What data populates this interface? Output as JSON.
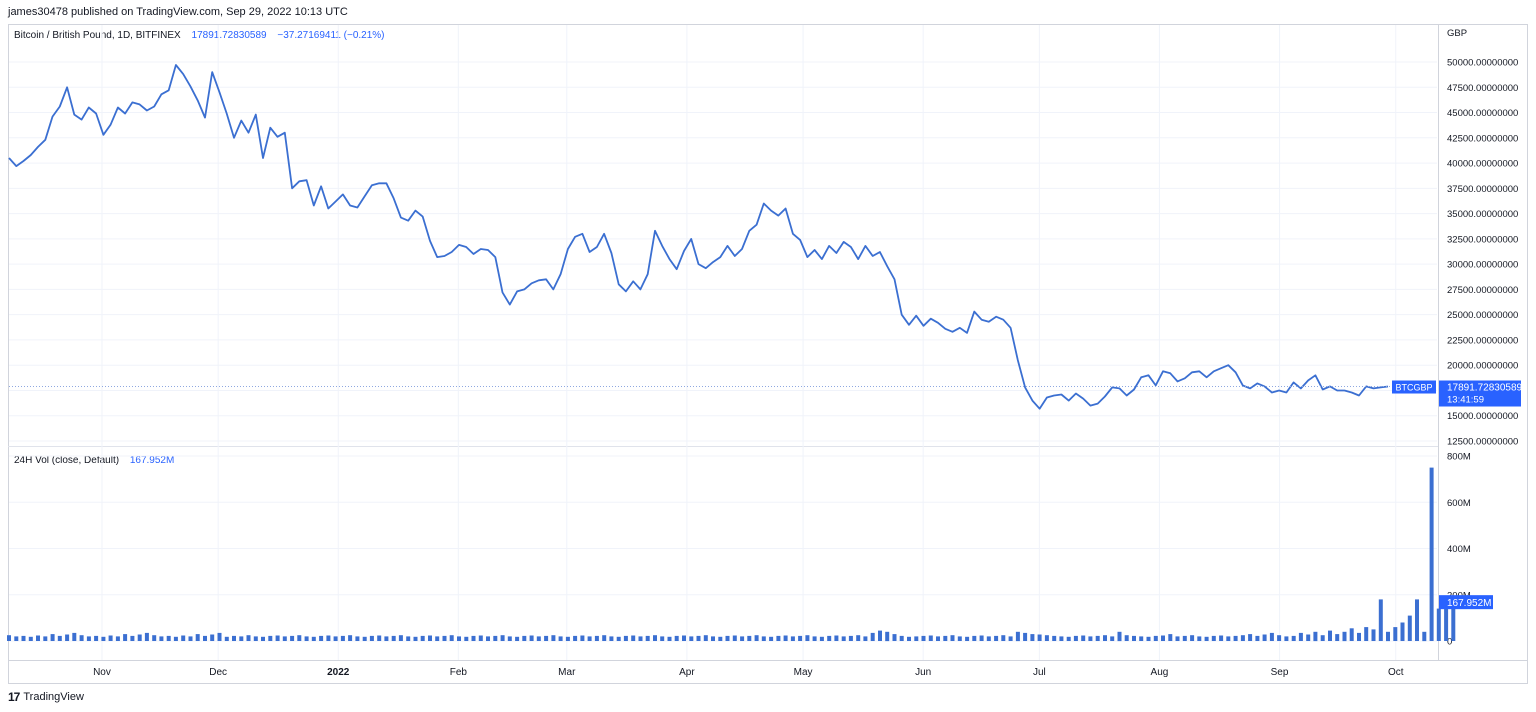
{
  "header": {
    "published": "james30478 published on TradingView.com, Sep 29, 2022 10:13 UTC"
  },
  "price_legend": {
    "symbol": "Bitcoin / British Pound, 1D, BITFINEX",
    "last": "17891.72830589",
    "change": "−37.27169411 (−0.21%)"
  },
  "volume_legend": {
    "name": "24H Vol (close, Default)",
    "value": "167.952M"
  },
  "currency_label": "GBP",
  "price_tag": {
    "symbol": "BTCGBP",
    "price": "17891.72830589",
    "countdown": "13:41:59"
  },
  "volume_tag": "167.952M",
  "footer": {
    "logo": "17",
    "brand": "TradingView"
  },
  "colors": {
    "line": "#3b6fd1",
    "accent": "#2962ff",
    "grid": "#f0f3fa",
    "text": "#131722"
  },
  "chart_data": {
    "type": "line",
    "title": "Bitcoin / British Pound, 1D, BITFINEX",
    "x_labels": [
      "Nov",
      "Dec",
      "2022",
      "Feb",
      "Mar",
      "Apr",
      "May",
      "Jun",
      "Jul",
      "Aug",
      "Sep",
      "Oct"
    ],
    "y_ticks": [
      "50000.00000000",
      "47500.00000000",
      "45000.00000000",
      "42500.00000000",
      "40000.00000000",
      "37500.00000000",
      "35000.00000000",
      "32500.00000000",
      "30000.00000000",
      "27500.00000000",
      "25000.00000000",
      "22500.00000000",
      "20000.00000000",
      "17500.00000000",
      "15000.00000000",
      "12500.00000000"
    ],
    "ylim": [
      12500,
      50000
    ],
    "series": [
      {
        "x_start": "2021-10-08",
        "interval": "1D",
        "values": [
          40500,
          39700,
          40200,
          40800,
          41600,
          42300,
          44600,
          45600,
          47500,
          44800,
          44300,
          45500,
          44900,
          42800,
          43800,
          45500,
          44900,
          46000,
          45800,
          45200,
          45600,
          46800,
          47200,
          49700,
          48800,
          47600,
          46200,
          44500,
          49000,
          47000,
          44900,
          42500,
          44200,
          43000,
          44800,
          40500,
          43500,
          42600,
          43000,
          37500,
          38200,
          38300,
          35800,
          37700,
          35500,
          36200,
          36900,
          35800,
          35600,
          36700,
          37800,
          38000,
          38000,
          36500,
          34600,
          34300,
          35300,
          34700,
          32300,
          30700,
          30800,
          31200,
          31900,
          31700,
          31000,
          31500,
          31400,
          30700,
          27200,
          26000,
          27300,
          27500,
          28100,
          28400,
          28500,
          27500,
          29000,
          31500,
          32700,
          33000,
          31200,
          31700,
          33000,
          31100,
          28000,
          27300,
          28300,
          27500,
          29000,
          33300,
          31800,
          30500,
          29500,
          31300,
          32500,
          30000,
          29600,
          30200,
          30700,
          31800,
          30800,
          31500,
          33300,
          33900,
          36000,
          35300,
          34800,
          35500,
          33000,
          32400,
          30700,
          31400,
          30500,
          31800,
          31100,
          32200,
          31700,
          30500,
          31800,
          30800,
          31200,
          29800,
          28500,
          25000,
          24000,
          24900,
          23900,
          24600,
          24200,
          23600,
          23300,
          23700,
          23200,
          25300,
          24500,
          24300,
          24800,
          24500,
          23700,
          20500,
          17800,
          16500,
          15700,
          16800,
          17000,
          17100,
          16500,
          17200,
          16700,
          16000,
          16200,
          16900,
          17800,
          17700,
          17000,
          17600,
          18800,
          19000,
          18000,
          19400,
          19200,
          18400,
          18700,
          19300,
          19400,
          18800,
          19400,
          19700,
          20000,
          19300,
          18000,
          17700,
          18200,
          17900,
          17300,
          17500,
          17300,
          18300,
          17700,
          18500,
          19000,
          17600,
          17900,
          17500,
          17500,
          17300,
          17000,
          17900,
          17700,
          17800,
          17891.73
        ]
      },
      {
        "name": "24H Vol (close, Default)",
        "unit": "M",
        "ylim": [
          0,
          800
        ],
        "y_ticks": [
          "800M",
          "600M",
          "400M",
          "200M",
          "0"
        ],
        "values": [
          25,
          20,
          22,
          18,
          24,
          20,
          30,
          22,
          28,
          35,
          25,
          20,
          22,
          18,
          24,
          20,
          30,
          22,
          28,
          35,
          25,
          20,
          22,
          18,
          24,
          20,
          30,
          22,
          28,
          35,
          18,
          22,
          20,
          25,
          20,
          18,
          22,
          24,
          20,
          22,
          25,
          20,
          18,
          22,
          24,
          20,
          22,
          25,
          20,
          18,
          22,
          24,
          20,
          22,
          25,
          20,
          18,
          22,
          24,
          20,
          22,
          25,
          20,
          18,
          22,
          24,
          20,
          22,
          25,
          20,
          18,
          22,
          24,
          20,
          22,
          25,
          20,
          18,
          22,
          24,
          20,
          22,
          25,
          20,
          18,
          22,
          24,
          20,
          22,
          25,
          20,
          18,
          22,
          24,
          20,
          22,
          25,
          20,
          18,
          22,
          24,
          20,
          22,
          25,
          20,
          18,
          22,
          24,
          20,
          22,
          25,
          20,
          18,
          22,
          24,
          20,
          22,
          25,
          20,
          35,
          45,
          40,
          30,
          22,
          18,
          20,
          22,
          24,
          20,
          22,
          25,
          20,
          18,
          22,
          24,
          20,
          22,
          25,
          20,
          40,
          35,
          30,
          28,
          25,
          22,
          20,
          18,
          22,
          24,
          20,
          22,
          25,
          20,
          40,
          25,
          22,
          20,
          18,
          22,
          24,
          30,
          20,
          22,
          25,
          20,
          18,
          22,
          24,
          20,
          22,
          25,
          30,
          22,
          28,
          35,
          25,
          20,
          22,
          35,
          28,
          40,
          25,
          45,
          30,
          40,
          55,
          35,
          60,
          50,
          180,
          40,
          60,
          80,
          110,
          180,
          40,
          750,
          140,
          170,
          167.952
        ]
      }
    ]
  }
}
